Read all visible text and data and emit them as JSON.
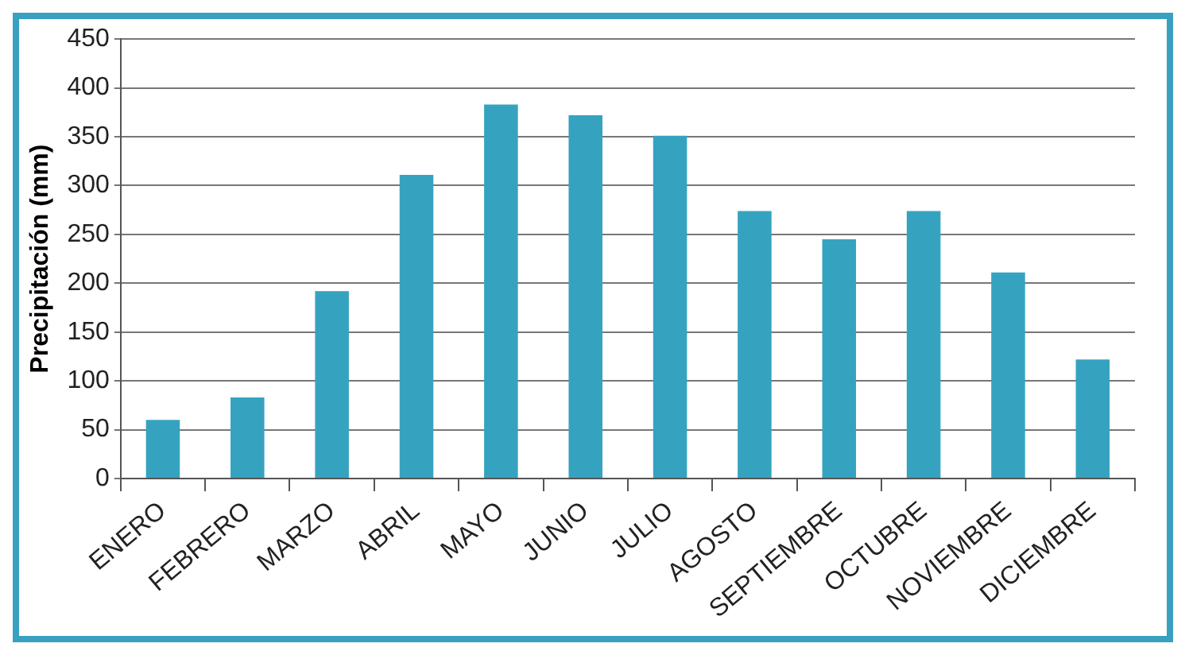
{
  "chart_data": {
    "type": "bar",
    "ylabel": "Precipitación (mm)",
    "categories": [
      "ENERO",
      "FEBRERO",
      "MARZO",
      "ABRIL",
      "MAYO",
      "JUNIO",
      "JULIO",
      "AGOSTO",
      "SEPTIEMBRE",
      "OCTUBRE",
      "NOVIEMBRE",
      "DICIEMBRE"
    ],
    "values": [
      60,
      83,
      192,
      311,
      383,
      372,
      351,
      274,
      245,
      274,
      211,
      122
    ],
    "color": "#35a3c0",
    "ylim": [
      0,
      450
    ],
    "yticks": [
      0,
      50,
      100,
      150,
      200,
      250,
      300,
      350,
      400,
      450
    ],
    "grid": "y",
    "legend": false
  }
}
